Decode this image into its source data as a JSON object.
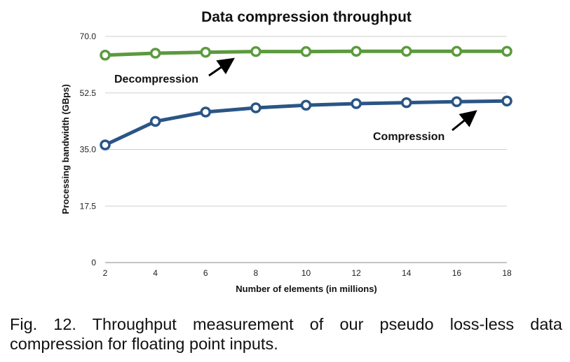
{
  "chart_data": {
    "type": "line",
    "title": "Data compression throughput",
    "xlabel": "Number of elements (in millions)",
    "ylabel": "Processing bandwidth (GBps)",
    "x": [
      2,
      4,
      6,
      8,
      10,
      12,
      14,
      16,
      18
    ],
    "x_ticks": [
      "2",
      "4",
      "6",
      "8",
      "10",
      "12",
      "14",
      "16",
      "18"
    ],
    "xlim": [
      2,
      18
    ],
    "y_ticks": [
      "0",
      "17.5",
      "35.0",
      "52.5",
      "70.0"
    ],
    "ylim": [
      0,
      70
    ],
    "grid": true,
    "series": [
      {
        "name": "Decompression",
        "color": "#5b9a3e",
        "values": [
          64.2,
          64.8,
          65.1,
          65.3,
          65.3,
          65.4,
          65.4,
          65.4,
          65.4
        ]
      },
      {
        "name": "Compression",
        "color": "#2a5586",
        "values": [
          36.4,
          43.7,
          46.6,
          47.9,
          48.7,
          49.2,
          49.5,
          49.8,
          50.0
        ]
      }
    ],
    "annotations": [
      {
        "text": "Decompression",
        "points_to": {
          "x": 7.0,
          "y": 65.2
        }
      },
      {
        "text": "Compression",
        "points_to": {
          "x": 17.0,
          "y": 49.9
        }
      }
    ]
  },
  "caption": "Fig. 12. Throughput measurement of our pseudo loss-less data compression for floating point inputs."
}
